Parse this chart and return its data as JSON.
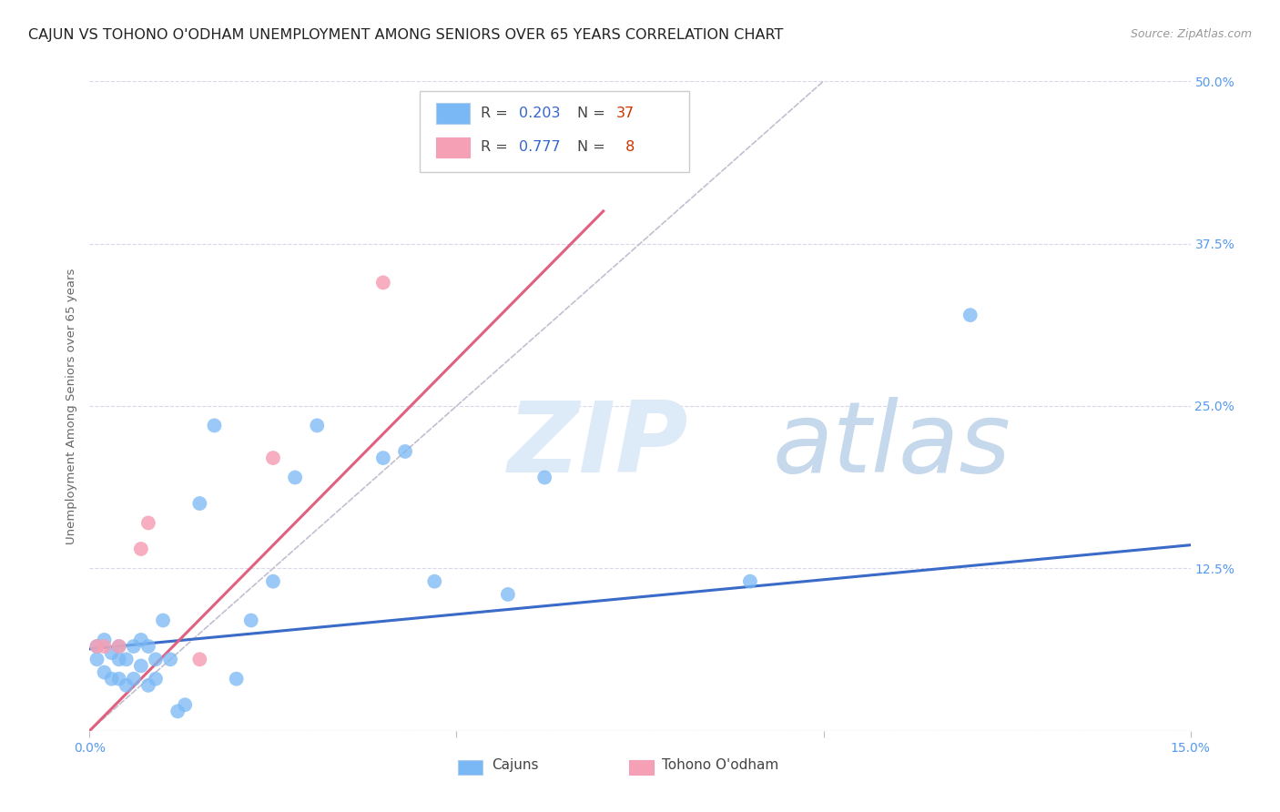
{
  "title": "CAJUN VS TOHONO O'ODHAM UNEMPLOYMENT AMONG SENIORS OVER 65 YEARS CORRELATION CHART",
  "source": "Source: ZipAtlas.com",
  "ylabel": "Unemployment Among Seniors over 65 years",
  "xlim": [
    0,
    0.15
  ],
  "ylim": [
    0,
    0.5
  ],
  "yticks": [
    0,
    0.125,
    0.25,
    0.375,
    0.5
  ],
  "xticks": [
    0,
    0.05,
    0.1,
    0.15
  ],
  "xtick_labels": [
    "0.0%",
    "",
    "",
    "15.0%"
  ],
  "ytick_labels": [
    "",
    "12.5%",
    "25.0%",
    "37.5%",
    "50.0%"
  ],
  "legend_R_cajun": "0.203",
  "legend_N_cajun": "37",
  "legend_R_tohono": "0.777",
  "legend_N_tohono": "8",
  "cajun_color": "#7ab8f5",
  "tohono_color": "#f5a0b5",
  "cajun_line_color": "#3a6bc8",
  "tohono_line_color": "#e06080",
  "diag_line_color": "#c0c0d0",
  "tick_color": "#5599ee",
  "title_fontsize": 11.5,
  "axis_label_fontsize": 9.5,
  "tick_fontsize": 10,
  "source_fontsize": 9,
  "background_color": "#ffffff",
  "cajun_x": [
    0.001,
    0.001,
    0.002,
    0.002,
    0.003,
    0.003,
    0.004,
    0.004,
    0.004,
    0.005,
    0.005,
    0.006,
    0.006,
    0.007,
    0.007,
    0.008,
    0.008,
    0.009,
    0.009,
    0.01,
    0.011,
    0.012,
    0.013,
    0.015,
    0.017,
    0.02,
    0.022,
    0.025,
    0.028,
    0.031,
    0.04,
    0.043,
    0.047,
    0.057,
    0.062,
    0.09,
    0.12
  ],
  "cajun_y": [
    0.065,
    0.055,
    0.045,
    0.07,
    0.06,
    0.04,
    0.065,
    0.04,
    0.055,
    0.035,
    0.055,
    0.065,
    0.04,
    0.07,
    0.05,
    0.035,
    0.065,
    0.055,
    0.04,
    0.085,
    0.055,
    0.015,
    0.02,
    0.175,
    0.235,
    0.04,
    0.085,
    0.115,
    0.195,
    0.235,
    0.21,
    0.215,
    0.115,
    0.105,
    0.195,
    0.115,
    0.32
  ],
  "tohono_x": [
    0.001,
    0.002,
    0.004,
    0.007,
    0.008,
    0.015,
    0.025,
    0.04
  ],
  "tohono_y": [
    0.065,
    0.065,
    0.065,
    0.14,
    0.16,
    0.055,
    0.21,
    0.345
  ],
  "cajun_trend_x0": 0.0,
  "cajun_trend_y0": 0.063,
  "cajun_trend_x1": 0.15,
  "cajun_trend_y1": 0.143,
  "tohono_trend_x0": 0.0,
  "tohono_trend_y0": 0.0,
  "tohono_trend_x1": 0.07,
  "tohono_trend_y1": 0.4
}
